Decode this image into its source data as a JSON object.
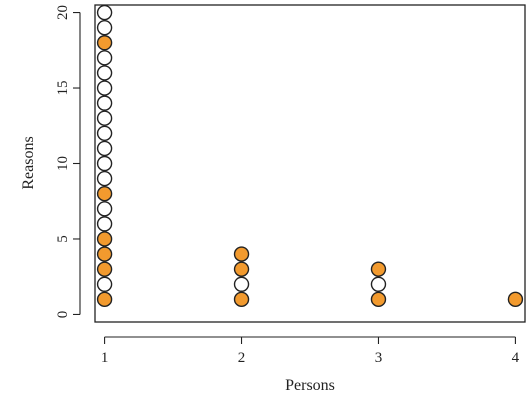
{
  "chart_data": {
    "type": "scatter",
    "xlabel": "Persons",
    "ylabel": "Reasons",
    "x_ticks": [
      1,
      2,
      3,
      4
    ],
    "y_ticks": [
      0,
      5,
      10,
      15,
      20
    ],
    "xlim": [
      0.93,
      4.07
    ],
    "ylim": [
      -0.5,
      20.5
    ],
    "grid": false,
    "colors": {
      "filled": "#f29a2e",
      "open": "#ffffff",
      "outline": "#222222"
    },
    "points": [
      {
        "x": 1,
        "y": 1,
        "filled": true
      },
      {
        "x": 1,
        "y": 2,
        "filled": false
      },
      {
        "x": 1,
        "y": 3,
        "filled": true
      },
      {
        "x": 1,
        "y": 4,
        "filled": true
      },
      {
        "x": 1,
        "y": 5,
        "filled": true
      },
      {
        "x": 1,
        "y": 6,
        "filled": false
      },
      {
        "x": 1,
        "y": 7,
        "filled": false
      },
      {
        "x": 1,
        "y": 8,
        "filled": true
      },
      {
        "x": 1,
        "y": 9,
        "filled": false
      },
      {
        "x": 1,
        "y": 10,
        "filled": false
      },
      {
        "x": 1,
        "y": 11,
        "filled": false
      },
      {
        "x": 1,
        "y": 12,
        "filled": false
      },
      {
        "x": 1,
        "y": 13,
        "filled": false
      },
      {
        "x": 1,
        "y": 14,
        "filled": false
      },
      {
        "x": 1,
        "y": 15,
        "filled": false
      },
      {
        "x": 1,
        "y": 16,
        "filled": false
      },
      {
        "x": 1,
        "y": 17,
        "filled": false
      },
      {
        "x": 1,
        "y": 18,
        "filled": true
      },
      {
        "x": 1,
        "y": 19,
        "filled": false
      },
      {
        "x": 1,
        "y": 20,
        "filled": false
      },
      {
        "x": 2,
        "y": 1,
        "filled": true
      },
      {
        "x": 2,
        "y": 2,
        "filled": false
      },
      {
        "x": 2,
        "y": 3,
        "filled": true
      },
      {
        "x": 2,
        "y": 4,
        "filled": true
      },
      {
        "x": 3,
        "y": 1,
        "filled": true
      },
      {
        "x": 3,
        "y": 2,
        "filled": false
      },
      {
        "x": 3,
        "y": 3,
        "filled": true
      },
      {
        "x": 4,
        "y": 1,
        "filled": true
      }
    ]
  }
}
